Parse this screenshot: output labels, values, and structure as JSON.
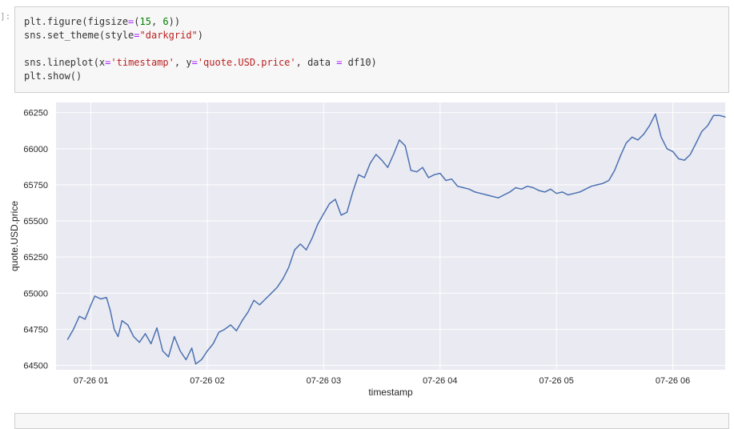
{
  "cell": {
    "prompt": "]:",
    "code_lines": [
      [
        {
          "t": "plt.figure(figsize"
        },
        {
          "t": "=",
          "c": "op"
        },
        {
          "t": "("
        },
        {
          "t": "15",
          "c": "num"
        },
        {
          "t": ", "
        },
        {
          "t": "6",
          "c": "num"
        },
        {
          "t": "))"
        }
      ],
      [
        {
          "t": "sns.set_theme(style"
        },
        {
          "t": "=",
          "c": "op"
        },
        {
          "t": "\"darkgrid\"",
          "c": "str"
        },
        {
          "t": ")"
        }
      ],
      [],
      [
        {
          "t": "sns.lineplot(x"
        },
        {
          "t": "=",
          "c": "op"
        },
        {
          "t": "'timestamp'",
          "c": "str"
        },
        {
          "t": ", y"
        },
        {
          "t": "=",
          "c": "op"
        },
        {
          "t": "'quote.USD.price'",
          "c": "str"
        },
        {
          "t": ", data "
        },
        {
          "t": "=",
          "c": "op"
        },
        {
          "t": " df10)"
        }
      ],
      [
        {
          "t": "plt.show()"
        }
      ]
    ]
  },
  "colors": {
    "plot_bg": "#eaeaf2",
    "line": "#4c72b0",
    "grid": "#ffffff"
  },
  "chart_data": {
    "type": "line",
    "title": "",
    "xlabel": "timestamp",
    "ylabel": "quote.USD.price",
    "grid": true,
    "xlim": [
      "00:42",
      "06:27"
    ],
    "ylim": [
      64470,
      66320
    ],
    "x_ticks": [
      "07-26 01",
      "07-26 02",
      "07-26 03",
      "07-26 04",
      "07-26 05",
      "07-26 06"
    ],
    "x_tick_values": [
      "01:00",
      "02:00",
      "03:00",
      "04:00",
      "05:00",
      "06:00"
    ],
    "y_ticks": [
      "64500",
      "64750",
      "65000",
      "65250",
      "65500",
      "65750",
      "66000",
      "66250"
    ],
    "y_tick_values": [
      64500,
      64750,
      65000,
      65250,
      65500,
      65750,
      66000,
      66250
    ],
    "points": [
      [
        "00:48",
        64680
      ],
      [
        "00:51",
        64750
      ],
      [
        "00:54",
        64840
      ],
      [
        "00:57",
        64820
      ],
      [
        "01:00",
        64920
      ],
      [
        "01:02",
        64980
      ],
      [
        "01:05",
        64960
      ],
      [
        "01:08",
        64970
      ],
      [
        "01:10",
        64880
      ],
      [
        "01:12",
        64750
      ],
      [
        "01:14",
        64700
      ],
      [
        "01:16",
        64810
      ],
      [
        "01:19",
        64780
      ],
      [
        "01:22",
        64700
      ],
      [
        "01:25",
        64660
      ],
      [
        "01:28",
        64720
      ],
      [
        "01:31",
        64650
      ],
      [
        "01:34",
        64760
      ],
      [
        "01:37",
        64600
      ],
      [
        "01:40",
        64560
      ],
      [
        "01:43",
        64700
      ],
      [
        "01:46",
        64600
      ],
      [
        "01:49",
        64540
      ],
      [
        "01:52",
        64620
      ],
      [
        "01:54",
        64510
      ],
      [
        "01:57",
        64540
      ],
      [
        "02:00",
        64600
      ],
      [
        "02:03",
        64650
      ],
      [
        "02:06",
        64730
      ],
      [
        "02:09",
        64750
      ],
      [
        "02:12",
        64780
      ],
      [
        "02:15",
        64740
      ],
      [
        "02:18",
        64810
      ],
      [
        "02:21",
        64870
      ],
      [
        "02:24",
        64950
      ],
      [
        "02:27",
        64920
      ],
      [
        "02:30",
        64960
      ],
      [
        "02:33",
        65000
      ],
      [
        "02:36",
        65040
      ],
      [
        "02:39",
        65100
      ],
      [
        "02:42",
        65180
      ],
      [
        "02:45",
        65300
      ],
      [
        "02:48",
        65340
      ],
      [
        "02:51",
        65300
      ],
      [
        "02:54",
        65380
      ],
      [
        "02:57",
        65480
      ],
      [
        "03:00",
        65550
      ],
      [
        "03:03",
        65620
      ],
      [
        "03:06",
        65650
      ],
      [
        "03:09",
        65540
      ],
      [
        "03:12",
        65560
      ],
      [
        "03:15",
        65700
      ],
      [
        "03:18",
        65820
      ],
      [
        "03:21",
        65800
      ],
      [
        "03:24",
        65900
      ],
      [
        "03:27",
        65960
      ],
      [
        "03:30",
        65920
      ],
      [
        "03:33",
        65870
      ],
      [
        "03:36",
        65960
      ],
      [
        "03:39",
        66060
      ],
      [
        "03:42",
        66020
      ],
      [
        "03:45",
        65850
      ],
      [
        "03:48",
        65840
      ],
      [
        "03:51",
        65870
      ],
      [
        "03:54",
        65800
      ],
      [
        "03:57",
        65820
      ],
      [
        "04:00",
        65830
      ],
      [
        "04:03",
        65780
      ],
      [
        "04:06",
        65790
      ],
      [
        "04:09",
        65740
      ],
      [
        "04:12",
        65730
      ],
      [
        "04:15",
        65720
      ],
      [
        "04:18",
        65700
      ],
      [
        "04:21",
        65690
      ],
      [
        "04:24",
        65680
      ],
      [
        "04:27",
        65670
      ],
      [
        "04:30",
        65660
      ],
      [
        "04:33",
        65680
      ],
      [
        "04:36",
        65700
      ],
      [
        "04:39",
        65730
      ],
      [
        "04:42",
        65720
      ],
      [
        "04:45",
        65740
      ],
      [
        "04:48",
        65730
      ],
      [
        "04:51",
        65710
      ],
      [
        "04:54",
        65700
      ],
      [
        "04:57",
        65720
      ],
      [
        "05:00",
        65690
      ],
      [
        "05:03",
        65700
      ],
      [
        "05:06",
        65680
      ],
      [
        "05:09",
        65690
      ],
      [
        "05:12",
        65700
      ],
      [
        "05:15",
        65720
      ],
      [
        "05:18",
        65740
      ],
      [
        "05:21",
        65750
      ],
      [
        "05:24",
        65760
      ],
      [
        "05:27",
        65780
      ],
      [
        "05:30",
        65850
      ],
      [
        "05:33",
        65950
      ],
      [
        "05:36",
        66040
      ],
      [
        "05:39",
        66080
      ],
      [
        "05:42",
        66060
      ],
      [
        "05:45",
        66100
      ],
      [
        "05:48",
        66160
      ],
      [
        "05:51",
        66240
      ],
      [
        "05:54",
        66080
      ],
      [
        "05:57",
        66000
      ],
      [
        "06:00",
        65980
      ],
      [
        "06:03",
        65930
      ],
      [
        "06:06",
        65920
      ],
      [
        "06:09",
        65960
      ],
      [
        "06:12",
        66040
      ],
      [
        "06:15",
        66120
      ],
      [
        "06:18",
        66160
      ],
      [
        "06:21",
        66230
      ],
      [
        "06:24",
        66230
      ],
      [
        "06:27",
        66220
      ]
    ]
  }
}
